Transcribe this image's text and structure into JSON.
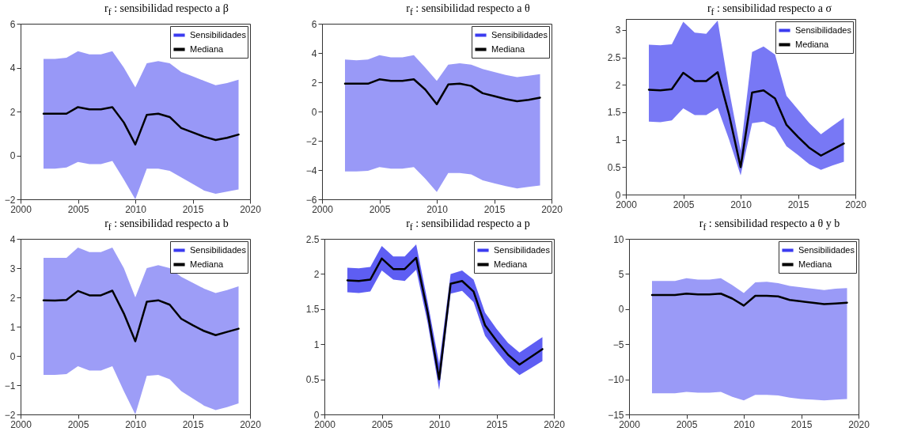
{
  "chart_data": [
    {
      "type": "line",
      "title": "r$_{f}$ : sensibilidad respecto a β",
      "annotations": [
        "Sensibilidades"
      ],
      "x": [
        2002,
        2003,
        2004,
        2005,
        2006,
        2007,
        2008,
        2009,
        2010,
        2011,
        2012,
        2013,
        2014,
        2015,
        2016,
        2017,
        2018,
        2019
      ],
      "xlim": [
        2000,
        2020
      ],
      "xticks": [
        2000,
        2005,
        2010,
        2015,
        2020
      ],
      "ylim": [
        -2,
        6
      ],
      "yticks": [
        -2,
        0,
        2,
        4,
        6
      ],
      "legend": "top right",
      "series": [
        {
          "name": "Mediana",
          "color": "#000000",
          "values": [
            1.9,
            1.9,
            1.9,
            2.2,
            2.1,
            2.1,
            2.2,
            1.5,
            0.5,
            1.85,
            1.9,
            1.75,
            1.25,
            1.05,
            0.85,
            0.7,
            0.8,
            0.95
          ],
          "lower": [
            -0.6,
            -0.6,
            -0.55,
            -0.3,
            -0.4,
            -0.4,
            -0.25,
            -1.1,
            -2.0,
            -0.6,
            -0.6,
            -0.7,
            -1.0,
            -1.3,
            -1.6,
            -1.75,
            -1.65,
            -1.55
          ],
          "upper": [
            4.4,
            4.4,
            4.45,
            4.75,
            4.6,
            4.6,
            4.75,
            4.0,
            3.1,
            4.2,
            4.3,
            4.2,
            3.8,
            3.6,
            3.4,
            3.2,
            3.3,
            3.45
          ]
        }
      ]
    },
    {
      "type": "line",
      "title": "r$_{f}$ : sensibilidad respecto a θ",
      "annotations": [
        "Sensibilidades"
      ],
      "x": [
        2002,
        2003,
        2004,
        2005,
        2006,
        2007,
        2008,
        2009,
        2010,
        2011,
        2012,
        2013,
        2014,
        2015,
        2016,
        2017,
        2018,
        2019
      ],
      "xlim": [
        2000,
        2020
      ],
      "xticks": [
        2000,
        2005,
        2010,
        2015,
        2020
      ],
      "ylim": [
        -6,
        6
      ],
      "yticks": [
        -6,
        -4,
        -2,
        0,
        2,
        4,
        6
      ],
      "legend": "top right",
      "series": [
        {
          "name": "Mediana",
          "color": "#000000",
          "values": [
            1.9,
            1.9,
            1.9,
            2.2,
            2.1,
            2.1,
            2.2,
            1.5,
            0.5,
            1.85,
            1.9,
            1.75,
            1.25,
            1.05,
            0.85,
            0.7,
            0.8,
            0.95
          ],
          "lower": [
            -4.1,
            -4.1,
            -4.05,
            -3.8,
            -3.9,
            -3.9,
            -3.8,
            -4.6,
            -5.5,
            -4.2,
            -4.2,
            -4.3,
            -4.7,
            -4.9,
            -5.1,
            -5.25,
            -5.15,
            -5.05
          ],
          "upper": [
            3.55,
            3.5,
            3.55,
            3.85,
            3.7,
            3.7,
            3.85,
            3.0,
            2.1,
            3.2,
            3.3,
            3.2,
            2.9,
            2.7,
            2.5,
            2.35,
            2.45,
            2.55
          ]
        }
      ]
    },
    {
      "type": "line",
      "title": "r$_{f}$ : sensibilidad respecto a σ",
      "annotations": [
        "Sensibilidades"
      ],
      "x": [
        2002,
        2003,
        2004,
        2005,
        2006,
        2007,
        2008,
        2009,
        2010,
        2011,
        2012,
        2013,
        2014,
        2015,
        2016,
        2017,
        2018,
        2019
      ],
      "xlim": [
        2000,
        2020
      ],
      "xticks": [
        2000,
        2005,
        2010,
        2015,
        2020
      ],
      "ylim": [
        0,
        3.2
      ],
      "yticks": [
        0,
        0.5,
        1,
        1.5,
        2,
        2.5,
        3
      ],
      "legend": "top right",
      "series": [
        {
          "name": "Mediana",
          "color": "#000000",
          "values": [
            1.91,
            1.9,
            1.92,
            2.22,
            2.07,
            2.07,
            2.23,
            1.45,
            0.5,
            1.86,
            1.9,
            1.75,
            1.27,
            1.05,
            0.85,
            0.71,
            0.82,
            0.93
          ],
          "lower": [
            1.33,
            1.32,
            1.35,
            1.57,
            1.45,
            1.45,
            1.58,
            1.0,
            0.35,
            1.3,
            1.33,
            1.22,
            0.88,
            0.72,
            0.55,
            0.45,
            0.53,
            0.6
          ],
          "upper": [
            2.73,
            2.72,
            2.74,
            3.15,
            2.95,
            2.93,
            3.17,
            1.9,
            0.8,
            2.6,
            2.7,
            2.55,
            1.8,
            1.55,
            1.3,
            1.1,
            1.25,
            1.4
          ]
        }
      ]
    },
    {
      "type": "line",
      "title": "r$_{f}$ : sensibilidad respecto a b",
      "annotations": [
        "Sensibilidades"
      ],
      "x": [
        2002,
        2003,
        2004,
        2005,
        2006,
        2007,
        2008,
        2009,
        2010,
        2011,
        2012,
        2013,
        2014,
        2015,
        2016,
        2017,
        2018,
        2019
      ],
      "xlim": [
        2000,
        2020
      ],
      "xticks": [
        2000,
        2005,
        2010,
        2015,
        2020
      ],
      "ylim": [
        -2,
        4
      ],
      "yticks": [
        -2,
        -1,
        0,
        1,
        2,
        3,
        4
      ],
      "legend": "top right",
      "series": [
        {
          "name": "Mediana",
          "color": "#000000",
          "values": [
            1.9,
            1.89,
            1.91,
            2.22,
            2.07,
            2.07,
            2.23,
            1.45,
            0.5,
            1.85,
            1.9,
            1.75,
            1.27,
            1.05,
            0.85,
            0.71,
            0.82,
            0.93
          ],
          "lower": [
            -0.65,
            -0.65,
            -0.62,
            -0.35,
            -0.5,
            -0.5,
            -0.35,
            -1.2,
            -2.0,
            -0.68,
            -0.65,
            -0.8,
            -1.2,
            -1.45,
            -1.7,
            -1.85,
            -1.75,
            -1.62
          ],
          "upper": [
            3.35,
            3.35,
            3.35,
            3.7,
            3.55,
            3.55,
            3.7,
            3.0,
            2.0,
            3.0,
            3.1,
            3.0,
            2.7,
            2.5,
            2.3,
            2.15,
            2.25,
            2.38
          ]
        }
      ]
    },
    {
      "type": "line",
      "title": "r$_{f}$ : sensibilidad respecto a p",
      "annotations": [
        "Sensibilidades"
      ],
      "x": [
        2002,
        2003,
        2004,
        2005,
        2006,
        2007,
        2008,
        2009,
        2010,
        2011,
        2012,
        2013,
        2014,
        2015,
        2016,
        2017,
        2018,
        2019
      ],
      "xlim": [
        2000,
        2020
      ],
      "xticks": [
        2000,
        2005,
        2010,
        2015,
        2020
      ],
      "ylim": [
        0,
        2.5
      ],
      "yticks": [
        0,
        0.5,
        1,
        1.5,
        2,
        2.5
      ],
      "legend": "top right",
      "series": [
        {
          "name": "Mediana",
          "color": "#000000",
          "values": [
            1.91,
            1.9,
            1.92,
            2.22,
            2.07,
            2.07,
            2.23,
            1.45,
            0.5,
            1.86,
            1.9,
            1.75,
            1.27,
            1.05,
            0.85,
            0.71,
            0.82,
            0.93
          ],
          "lower": [
            1.74,
            1.73,
            1.75,
            2.05,
            1.92,
            1.9,
            2.06,
            1.3,
            0.35,
            1.72,
            1.76,
            1.6,
            1.12,
            0.9,
            0.7,
            0.56,
            0.66,
            0.76
          ],
          "upper": [
            2.09,
            2.08,
            2.1,
            2.4,
            2.25,
            2.25,
            2.42,
            1.6,
            0.72,
            2.0,
            2.05,
            1.92,
            1.45,
            1.22,
            1.02,
            0.88,
            0.99,
            1.1
          ]
        }
      ]
    },
    {
      "type": "line",
      "title": "r$_{f}$ : sensibilidad respecto a θ y b",
      "annotations": [
        "Sensibilidades"
      ],
      "x": [
        2002,
        2003,
        2004,
        2005,
        2006,
        2007,
        2008,
        2009,
        2010,
        2011,
        2012,
        2013,
        2014,
        2015,
        2016,
        2017,
        2018,
        2019
      ],
      "xlim": [
        2000,
        2020
      ],
      "xticks": [
        2000,
        2005,
        2010,
        2015,
        2020
      ],
      "ylim": [
        -15,
        10
      ],
      "yticks": [
        -15,
        -10,
        -5,
        0,
        5,
        10
      ],
      "legend": "top right",
      "series": [
        {
          "name": "Mediana",
          "color": "#000000",
          "values": [
            2,
            2,
            2,
            2.2,
            2.1,
            2.1,
            2.2,
            1.5,
            0.5,
            1.9,
            1.9,
            1.8,
            1.3,
            1.1,
            0.9,
            0.7,
            0.8,
            0.9
          ],
          "lower": [
            -12,
            -12,
            -12,
            -11.8,
            -11.9,
            -11.9,
            -11.8,
            -12.5,
            -13,
            -12.2,
            -12.2,
            -12.3,
            -12.6,
            -12.8,
            -12.9,
            -13,
            -12.9,
            -12.8
          ],
          "upper": [
            4,
            4,
            4,
            4.4,
            4.2,
            4.2,
            4.4,
            3.4,
            2.3,
            3.8,
            3.9,
            3.7,
            3.3,
            3.1,
            2.9,
            2.7,
            2.9,
            3
          ]
        }
      ]
    }
  ]
}
